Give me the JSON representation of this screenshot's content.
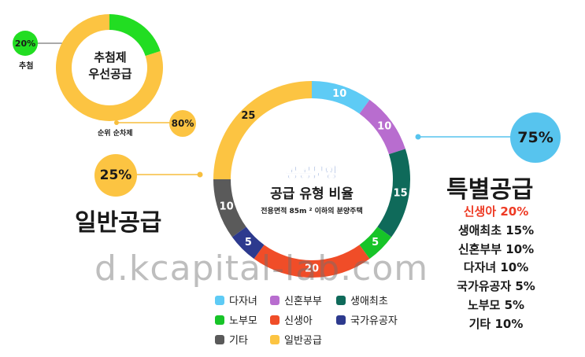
{
  "colors": {
    "badge": "#fcc442",
    "highlight": "#ee3a24",
    "connector": "#f7be3d",
    "connector_blue": "#57c4ee"
  },
  "chart_data": [
    {
      "type": "pie",
      "title": "추첨제\n우선공급",
      "series": [
        {
          "name": "추첨",
          "value": 20,
          "color": "#22dd22",
          "label": "20%"
        },
        {
          "name": "순위 순차제",
          "value": 80,
          "color": "#fcc442",
          "label": "80%"
        }
      ]
    },
    {
      "type": "pie",
      "title": "공공분양",
      "subtitle": "공급 유형 비율",
      "note": "전용면적 85m ² 이하의 분양주택",
      "series": [
        {
          "name": "다자녀",
          "value": 10,
          "color": "#5ecbf5"
        },
        {
          "name": "신혼부부",
          "value": 10,
          "color": "#b86dcf"
        },
        {
          "name": "생애최초",
          "value": 15,
          "color": "#0f6a5a"
        },
        {
          "name": "노부모",
          "value": 5,
          "color": "#17c428"
        },
        {
          "name": "신생아",
          "value": 20,
          "color": "#f04d28"
        },
        {
          "name": "국가유공자",
          "value": 5,
          "color": "#2d3a8e"
        },
        {
          "name": "기타",
          "value": 10,
          "color": "#5a5a5a"
        },
        {
          "name": "일반공급",
          "value": 25,
          "color": "#fcc442"
        }
      ]
    }
  ],
  "small_chart": {
    "title_line1": "추첨제",
    "title_line2": "우선공급",
    "badge_left": "20%",
    "badge_left_caption": "추첨",
    "badge_right": "80%",
    "badge_right_caption": "순위 순차제"
  },
  "main_chart": {
    "title": "공공분양",
    "subtitle": "공급 유형 비율",
    "note": "전용면적 85m ² 이하의 분양주택"
  },
  "general": {
    "percent": "25%",
    "label": "일반공급"
  },
  "special": {
    "percent": "75%",
    "label": "특별공급",
    "items": [
      "신생아 20%",
      "생애최초 15%",
      "신혼부부 10%",
      "다자녀 10%",
      "국가유공자 5%",
      "노부모 5%",
      "기타 10%"
    ]
  },
  "legend": [
    "다자녀",
    "신혼부부",
    "생애최초",
    "노부모",
    "신생아",
    "국가유공자",
    "기타",
    "일반공급"
  ],
  "watermark": "d.kcapital-lab.com"
}
